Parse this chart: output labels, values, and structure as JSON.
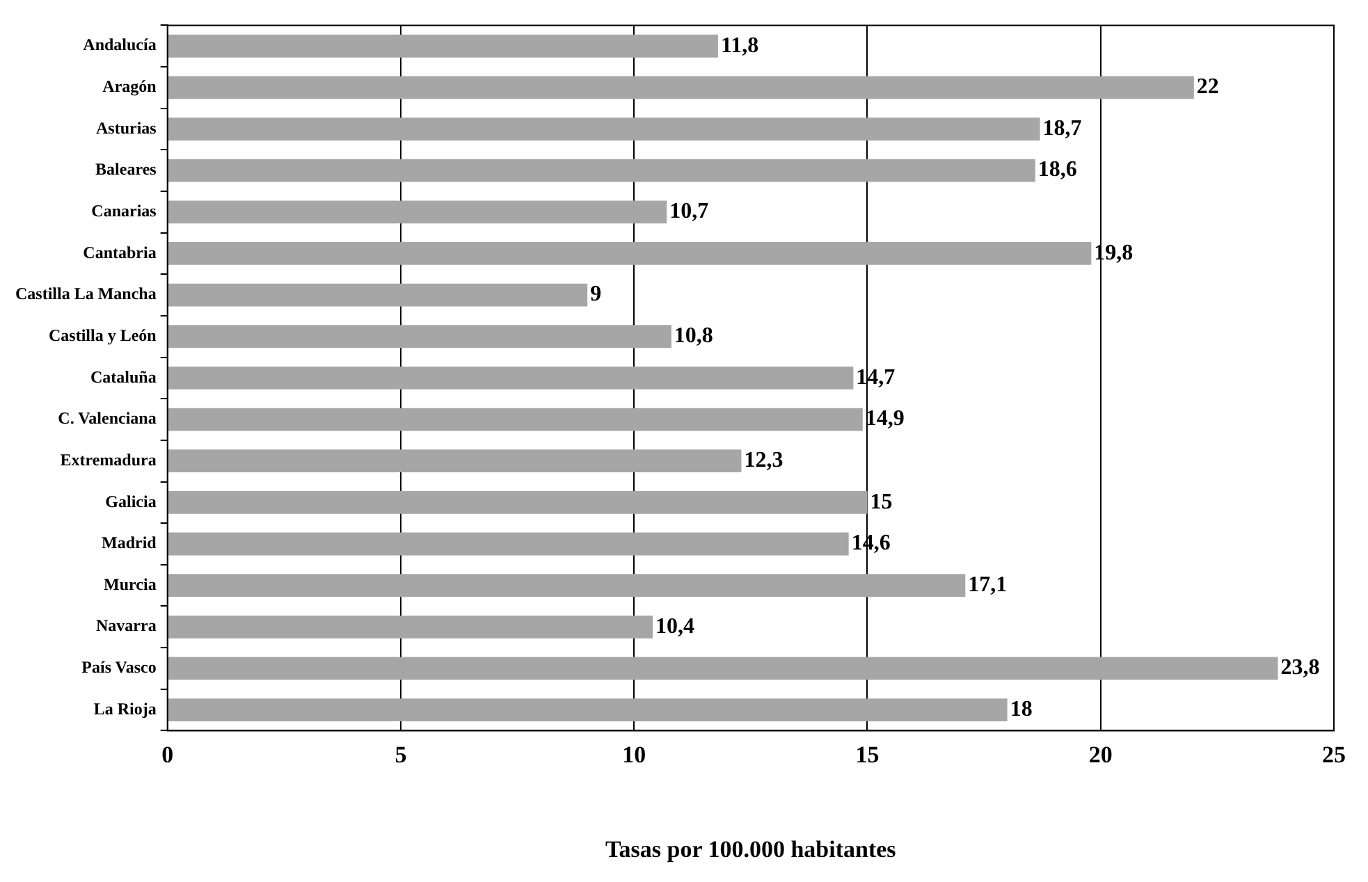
{
  "chart_data": {
    "type": "bar",
    "orientation": "horizontal",
    "xlabel": "Tasas por 100.000 habitantes",
    "categories": [
      "Andalucía",
      "Aragón",
      "Asturias",
      "Baleares",
      "Canarias",
      "Cantabria",
      "Castilla La Mancha",
      "Castilla y León",
      "Cataluña",
      "C. Valenciana",
      "Extremadura",
      "Galicia",
      "Madrid",
      "Murcia",
      "Navarra",
      "País Vasco",
      "La Rioja"
    ],
    "values": [
      11.8,
      22,
      18.7,
      18.6,
      10.7,
      19.8,
      9,
      10.8,
      14.7,
      14.9,
      12.3,
      15,
      14.6,
      17.1,
      10.4,
      23.8,
      18
    ],
    "value_labels": [
      "11,8",
      "22",
      "18,7",
      "18,6",
      "10,7",
      "19,8",
      "9",
      "10,8",
      "14,7",
      "14,9",
      "12,3",
      "15",
      "14,6",
      "17,1",
      "10,4",
      "23,8",
      "18"
    ],
    "color": "#a6a6a6",
    "xlim": [
      0,
      25
    ],
    "xticks": [
      0,
      5,
      10,
      15,
      20,
      25
    ],
    "grid": "x",
    "legend": false
  }
}
